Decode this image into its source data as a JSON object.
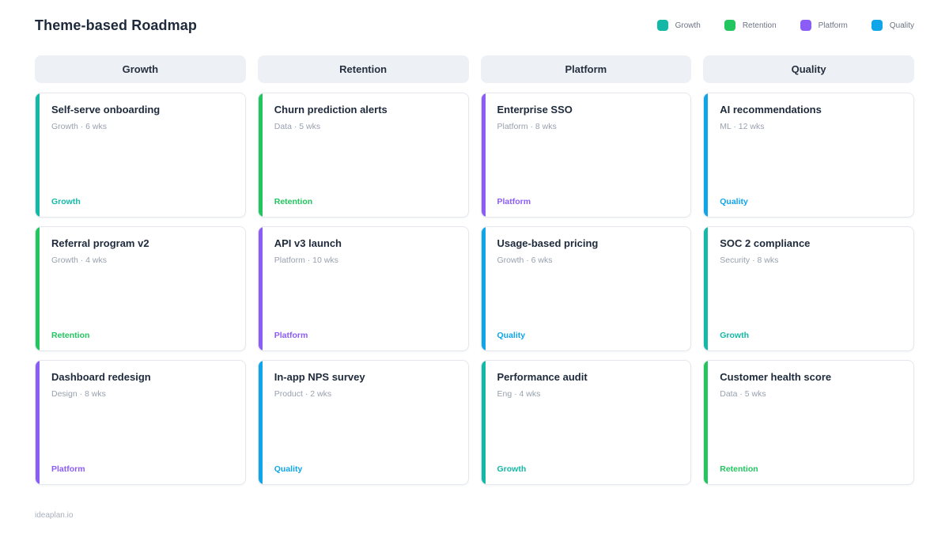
{
  "page": {
    "title": "Theme-based Roadmap",
    "footer": "ideaplan.io"
  },
  "theme_colors": {
    "growth": "#14b8a6",
    "retention": "#22c55e",
    "platform": "#8b5cf6",
    "quality": "#0ea5e9"
  },
  "legend": [
    {
      "label": "Growth",
      "color": "#14b8a6"
    },
    {
      "label": "Retention",
      "color": "#22c55e"
    },
    {
      "label": "Platform",
      "color": "#8b5cf6"
    },
    {
      "label": "Quality",
      "color": "#0ea5e9"
    }
  ],
  "columns": [
    {
      "header": "Growth",
      "cards": [
        {
          "title": "Self-serve onboarding",
          "meta": "Growth · 6 wks",
          "tag": "Growth",
          "color": "#14b8a6"
        },
        {
          "title": "Referral program v2",
          "meta": "Growth · 4 wks",
          "tag": "Retention",
          "color": "#22c55e"
        },
        {
          "title": "Dashboard redesign",
          "meta": "Design · 8 wks",
          "tag": "Platform",
          "color": "#8b5cf6"
        }
      ]
    },
    {
      "header": "Retention",
      "cards": [
        {
          "title": "Churn prediction alerts",
          "meta": "Data · 5 wks",
          "tag": "Retention",
          "color": "#22c55e"
        },
        {
          "title": "API v3 launch",
          "meta": "Platform · 10 wks",
          "tag": "Platform",
          "color": "#8b5cf6"
        },
        {
          "title": "In-app NPS survey",
          "meta": "Product · 2 wks",
          "tag": "Quality",
          "color": "#0ea5e9"
        }
      ]
    },
    {
      "header": "Platform",
      "cards": [
        {
          "title": "Enterprise SSO",
          "meta": "Platform · 8 wks",
          "tag": "Platform",
          "color": "#8b5cf6"
        },
        {
          "title": "Usage-based pricing",
          "meta": "Growth · 6 wks",
          "tag": "Quality",
          "color": "#0ea5e9"
        },
        {
          "title": "Performance audit",
          "meta": "Eng · 4 wks",
          "tag": "Growth",
          "color": "#14b8a6"
        }
      ]
    },
    {
      "header": "Quality",
      "cards": [
        {
          "title": "AI recommendations",
          "meta": "ML · 12 wks",
          "tag": "Quality",
          "color": "#0ea5e9"
        },
        {
          "title": "SOC 2 compliance",
          "meta": "Security · 8 wks",
          "tag": "Growth",
          "color": "#14b8a6"
        },
        {
          "title": "Customer health score",
          "meta": "Data · 5 wks",
          "tag": "Retention",
          "color": "#22c55e"
        }
      ]
    }
  ]
}
